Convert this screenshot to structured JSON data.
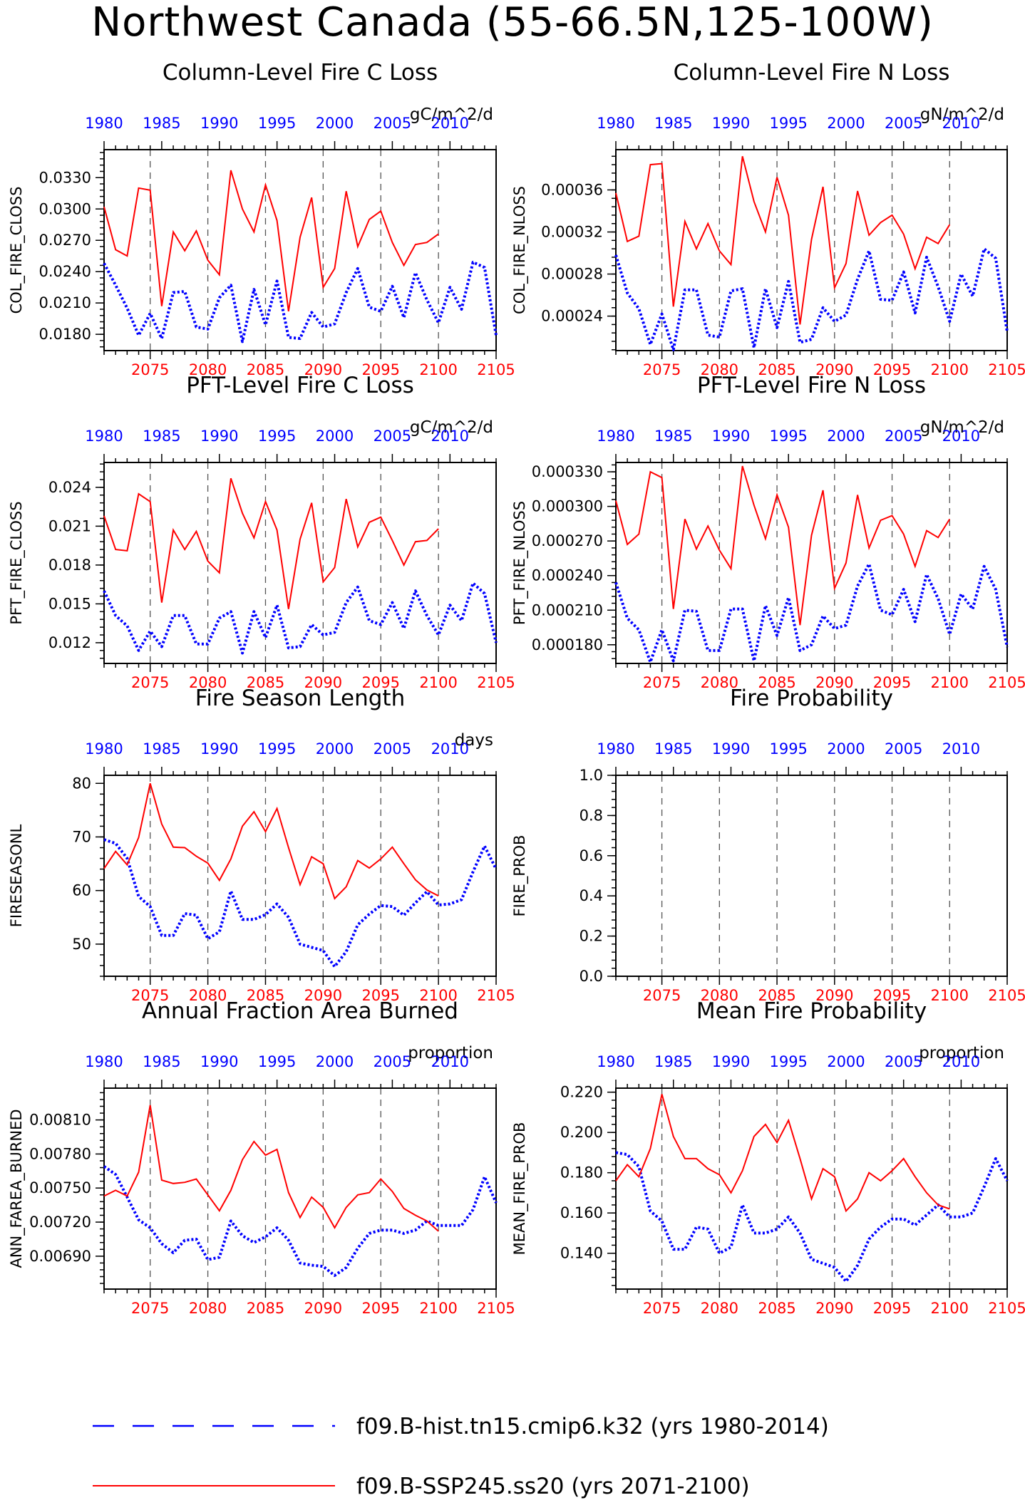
{
  "title": "Northwest Canada (55-66.5N,125-100W)",
  "colors": {
    "hist": "#0000ff",
    "ssp": "#ff0000",
    "axis": "#000000",
    "grid": "#555555"
  },
  "legend": [
    {
      "key": "hist",
      "label": "f09.B-hist.tn15.cmip6.k32 (yrs 1980-2014)",
      "style": "dashed-blue"
    },
    {
      "key": "ssp",
      "label": "f09.B-SSP245.ss20 (yrs 2071-2100)",
      "style": "solid-red"
    }
  ],
  "chart_data": [
    {
      "type": "line",
      "title": "Column-Level Fire C Loss",
      "units": "gC/m^2/d",
      "ylabel": "COL_FIRE_CLOSS",
      "ylim": [
        0.01644,
        0.03568
      ],
      "yticks": [
        "0.0180",
        "0.0210",
        "0.0240",
        "0.0270",
        "0.0300",
        "0.0330"
      ],
      "x_bottom": {
        "label": "",
        "range": [
          2071,
          2105
        ],
        "ticks": [
          2075,
          2080,
          2085,
          2090,
          2095,
          2100,
          2105
        ]
      },
      "x_top": {
        "label": "",
        "range": [
          1980,
          2014
        ],
        "ticks": [
          1980,
          1985,
          1990,
          1995,
          2000,
          2005,
          2010
        ]
      },
      "series": [
        {
          "key": "hist",
          "name": "f09.B-hist.tn15.cmip6.k32 (yrs 1980-2014)",
          "x_start": 1980,
          "values": [
            0.0248,
            0.0227,
            0.0205,
            0.0179,
            0.02,
            0.0176,
            0.022,
            0.0221,
            0.0187,
            0.0185,
            0.0215,
            0.0227,
            0.0173,
            0.0223,
            0.0189,
            0.0231,
            0.0177,
            0.0176,
            0.0201,
            0.0187,
            0.019,
            0.022,
            0.0243,
            0.0206,
            0.0202,
            0.0226,
            0.0196,
            0.0239,
            0.0213,
            0.0191,
            0.0225,
            0.0204,
            0.0249,
            0.0244,
            0.0179
          ]
        },
        {
          "key": "ssp",
          "name": "f09.B-SSP245.ss20 (yrs 2071-2100)",
          "x_start": 2071,
          "values": [
            0.0302,
            0.0261,
            0.0255,
            0.032,
            0.0318,
            0.0207,
            0.0278,
            0.026,
            0.0279,
            0.0251,
            0.0237,
            0.0337,
            0.03,
            0.0278,
            0.0323,
            0.0289,
            0.0202,
            0.0273,
            0.0311,
            0.0225,
            0.0243,
            0.0317,
            0.0264,
            0.029,
            0.0298,
            0.0268,
            0.0246,
            0.0266,
            0.0268,
            0.0276
          ]
        }
      ]
    },
    {
      "type": "line",
      "title": "Column-Level Fire N Loss",
      "units": "gN/m^2/d",
      "ylabel": "COL_FIRE_NLOSS",
      "ylim": [
        0.0002072,
        0.0003983
      ],
      "yticks": [
        "0.00024",
        "0.00028",
        "0.00032",
        "0.00036"
      ],
      "x_bottom": {
        "label": "",
        "range": [
          2071,
          2105
        ],
        "ticks": [
          2075,
          2080,
          2085,
          2090,
          2095,
          2100,
          2105
        ]
      },
      "x_top": {
        "label": "",
        "range": [
          1980,
          2014
        ],
        "ticks": [
          1980,
          1985,
          1990,
          1995,
          2000,
          2005,
          2010
        ]
      },
      "series": [
        {
          "key": "hist",
          "name": "f09.B-hist.tn15.cmip6.k32 (yrs 1980-2014)",
          "x_start": 1980,
          "values": [
            0.000298,
            0.000262,
            0.000247,
            0.000213,
            0.000242,
            0.000208,
            0.000265,
            0.000265,
            0.000222,
            0.00022,
            0.000264,
            0.000266,
            0.00021,
            0.000266,
            0.000229,
            0.000273,
            0.000215,
            0.000218,
            0.000248,
            0.000235,
            0.000241,
            0.000275,
            0.000302,
            0.000256,
            0.000255,
            0.000282,
            0.000243,
            0.000296,
            0.000268,
            0.000235,
            0.00028,
            0.000259,
            0.000304,
            0.000295,
            0.000225
          ]
        },
        {
          "key": "ssp",
          "name": "f09.B-SSP245.ss20 (yrs 2071-2100)",
          "x_start": 2071,
          "values": [
            0.000357,
            0.000311,
            0.000316,
            0.000384,
            0.000385,
            0.000249,
            0.00033,
            0.000304,
            0.000328,
            0.000302,
            0.000289,
            0.000392,
            0.000349,
            0.00032,
            0.000372,
            0.000336,
            0.000232,
            0.000313,
            0.000363,
            0.000267,
            0.00029,
            0.000359,
            0.000317,
            0.000329,
            0.000336,
            0.000318,
            0.000285,
            0.000315,
            0.000309,
            0.000327
          ]
        }
      ]
    },
    {
      "type": "line",
      "title": "PFT-Level Fire C Loss",
      "units": "gC/m^2/d",
      "ylabel": "PFT_FIRE_CLOSS",
      "ylim": [
        0.0104,
        0.02592
      ],
      "yticks": [
        "0.012",
        "0.015",
        "0.018",
        "0.021",
        "0.024"
      ],
      "x_bottom": {
        "label": "",
        "range": [
          2071,
          2105
        ],
        "ticks": [
          2075,
          2080,
          2085,
          2090,
          2095,
          2100,
          2105
        ]
      },
      "x_top": {
        "label": "",
        "range": [
          1980,
          2014
        ],
        "ticks": [
          1980,
          1985,
          1990,
          1995,
          2000,
          2005,
          2010
        ]
      },
      "series": [
        {
          "key": "hist",
          "name": "f09.B-hist.tn15.cmip6.k32 (yrs 1980-2014)",
          "x_start": 1980,
          "values": [
            0.016,
            0.0141,
            0.0133,
            0.0114,
            0.0129,
            0.0117,
            0.0141,
            0.0141,
            0.0119,
            0.0119,
            0.0139,
            0.0144,
            0.0112,
            0.0144,
            0.0124,
            0.0149,
            0.0116,
            0.0117,
            0.0134,
            0.0126,
            0.0128,
            0.0151,
            0.0163,
            0.0137,
            0.0134,
            0.0151,
            0.0131,
            0.016,
            0.0141,
            0.0126,
            0.0149,
            0.0137,
            0.0166,
            0.0158,
            0.012
          ]
        },
        {
          "key": "ssp",
          "name": "f09.B-SSP245.ss20 (yrs 2071-2100)",
          "x_start": 2071,
          "values": [
            0.0218,
            0.0192,
            0.0191,
            0.0235,
            0.0229,
            0.0151,
            0.0207,
            0.0192,
            0.0206,
            0.0183,
            0.0174,
            0.0247,
            0.022,
            0.0201,
            0.0229,
            0.0207,
            0.0146,
            0.02,
            0.0228,
            0.0167,
            0.0178,
            0.0231,
            0.0194,
            0.0213,
            0.0217,
            0.0199,
            0.018,
            0.0198,
            0.0199,
            0.0208
          ]
        }
      ]
    },
    {
      "type": "line",
      "title": "PFT-Level Fire N Loss",
      "units": "gN/m^2/d",
      "ylabel": "PFT_FIRE_NLOSS",
      "ylim": [
        0.0001638,
        0.0003381
      ],
      "yticks": [
        "0.000180",
        "0.000210",
        "0.000240",
        "0.000270",
        "0.000300",
        "0.000330"
      ],
      "x_bottom": {
        "label": "",
        "range": [
          2071,
          2105
        ],
        "ticks": [
          2075,
          2080,
          2085,
          2090,
          2095,
          2100,
          2105
        ]
      },
      "x_top": {
        "label": "",
        "range": [
          1980,
          2014
        ],
        "ticks": [
          1980,
          1985,
          1990,
          1995,
          2000,
          2005,
          2010
        ]
      },
      "series": [
        {
          "key": "hist",
          "name": "f09.B-hist.tn15.cmip6.k32 (yrs 1980-2014)",
          "x_start": 1980,
          "values": [
            0.000234,
            0.000203,
            0.000193,
            0.000165,
            0.000193,
            0.000166,
            0.00021,
            0.000209,
            0.000175,
            0.000175,
            0.000211,
            0.000211,
            0.000166,
            0.000214,
            0.000188,
            0.000221,
            0.000175,
            0.00018,
            0.000205,
            0.000194,
            0.000197,
            0.000231,
            0.00025,
            0.00021,
            0.000206,
            0.000228,
            0.0002,
            0.000241,
            0.00022,
            0.000189,
            0.000224,
            0.000211,
            0.000248,
            0.000228,
            0.000178
          ]
        },
        {
          "key": "ssp",
          "name": "f09.B-SSP245.ss20 (yrs 2071-2100)",
          "x_start": 2071,
          "values": [
            0.000305,
            0.000267,
            0.000276,
            0.00033,
            0.000325,
            0.000211,
            0.000289,
            0.000263,
            0.000283,
            0.000262,
            0.000246,
            0.000335,
            0.000301,
            0.000272,
            0.00031,
            0.000282,
            0.000197,
            0.000275,
            0.000314,
            0.000229,
            0.000251,
            0.00031,
            0.000264,
            0.000288,
            0.000292,
            0.000276,
            0.000248,
            0.000279,
            0.000273,
            0.000289
          ]
        }
      ]
    },
    {
      "type": "line",
      "title": "Fire Season Length",
      "units": "days",
      "ylabel": "FIRESEASONL",
      "ylim": [
        44,
        81.5
      ],
      "yticks": [
        "50",
        "60",
        "70",
        "80"
      ],
      "x_bottom": {
        "label": "",
        "range": [
          2071,
          2105
        ],
        "ticks": [
          2075,
          2080,
          2085,
          2090,
          2095,
          2100,
          2105
        ]
      },
      "x_top": {
        "label": "",
        "range": [
          1980,
          2014
        ],
        "ticks": [
          1980,
          1985,
          1990,
          1995,
          2000,
          2005,
          2010
        ]
      },
      "series": [
        {
          "key": "hist",
          "name": "f09.B-hist.tn15.cmip6.k32 (yrs 1980-2014)",
          "x_start": 1980,
          "values": [
            69.5,
            68.8,
            66.0,
            58.9,
            57.0,
            51.6,
            51.6,
            55.7,
            55.4,
            51.0,
            52.3,
            59.9,
            54.6,
            54.6,
            55.5,
            57.5,
            55.0,
            50.0,
            49.4,
            48.8,
            45.8,
            48.6,
            53.6,
            55.6,
            57.2,
            57.0,
            55.4,
            57.7,
            59.8,
            57.3,
            57.5,
            58.3,
            63.5,
            68.3,
            64.0
          ]
        },
        {
          "key": "ssp",
          "name": "f09.B-SSP245.ss20 (yrs 2071-2100)",
          "x_start": 2071,
          "values": [
            64.1,
            67.3,
            64.8,
            69.9,
            80.0,
            72.4,
            68.1,
            68.0,
            66.4,
            65.1,
            61.9,
            65.9,
            72.0,
            74.7,
            71.0,
            75.3,
            68.0,
            61.1,
            66.3,
            65.0,
            58.5,
            60.7,
            65.6,
            64.2,
            65.9,
            68.1,
            65.0,
            62.0,
            60.1,
            59.0
          ]
        }
      ]
    },
    {
      "type": "line",
      "title": "Fire Probability",
      "units": "",
      "ylabel": "FIRE_PROB",
      "ylim": [
        0,
        1
      ],
      "yticks": [
        "0.0",
        "0.2",
        "0.4",
        "0.6",
        "0.8",
        "1.0"
      ],
      "x_bottom": {
        "label": "",
        "range": [
          2071,
          2105
        ],
        "ticks": [
          2075,
          2080,
          2085,
          2090,
          2095,
          2100,
          2105
        ]
      },
      "x_top": {
        "label": "",
        "range": [
          1980,
          2014
        ],
        "ticks": [
          1980,
          1985,
          1990,
          1995,
          2000,
          2005,
          2010
        ]
      },
      "series": []
    },
    {
      "type": "line",
      "title": "Annual Fraction Area Burned",
      "units": "proportion",
      "ylabel": "ANN_FAREA_BURNED",
      "ylim": [
        0.00661,
        0.00838
      ],
      "yticks": [
        "0.00690",
        "0.00720",
        "0.00750",
        "0.00780",
        "0.00810"
      ],
      "x_bottom": {
        "label": "",
        "range": [
          2071,
          2105
        ],
        "ticks": [
          2075,
          2080,
          2085,
          2090,
          2095,
          2100,
          2105
        ]
      },
      "x_top": {
        "label": "",
        "range": [
          1980,
          2014
        ],
        "ticks": [
          1980,
          1985,
          1990,
          1995,
          2000,
          2005,
          2010
        ]
      },
      "series": [
        {
          "key": "hist",
          "name": "f09.B-hist.tn15.cmip6.k32 (yrs 1980-2014)",
          "x_start": 1980,
          "values": [
            0.00769,
            0.00762,
            0.00742,
            0.00722,
            0.00715,
            0.00701,
            0.00693,
            0.00704,
            0.00705,
            0.00687,
            0.00689,
            0.00721,
            0.00708,
            0.00702,
            0.00707,
            0.00715,
            0.00704,
            0.00684,
            0.00682,
            0.00681,
            0.00673,
            0.0068,
            0.00697,
            0.0071,
            0.00713,
            0.00713,
            0.0071,
            0.00713,
            0.00721,
            0.00717,
            0.00717,
            0.00717,
            0.00731,
            0.0076,
            0.00737
          ]
        },
        {
          "key": "ssp",
          "name": "f09.B-SSP245.ss20 (yrs 2071-2100)",
          "x_start": 2071,
          "values": [
            0.00743,
            0.00748,
            0.00743,
            0.00764,
            0.00823,
            0.00757,
            0.00754,
            0.00755,
            0.00758,
            0.00744,
            0.0073,
            0.00748,
            0.00775,
            0.00791,
            0.00779,
            0.00784,
            0.00746,
            0.00724,
            0.00742,
            0.00733,
            0.00715,
            0.00733,
            0.00744,
            0.00746,
            0.00758,
            0.00747,
            0.00732,
            0.00726,
            0.00721,
            0.00712
          ]
        }
      ]
    },
    {
      "type": "line",
      "title": "Mean Fire Probability",
      "units": "proportion",
      "ylabel": "MEAN_FIRE_PROB",
      "ylim": [
        0.1222,
        0.222
      ],
      "yticks": [
        "0.140",
        "0.160",
        "0.180",
        "0.200",
        "0.220"
      ],
      "x_bottom": {
        "label": "",
        "range": [
          2071,
          2105
        ],
        "ticks": [
          2075,
          2080,
          2085,
          2090,
          2095,
          2100,
          2105
        ]
      },
      "x_top": {
        "label": "",
        "range": [
          1980,
          2014
        ],
        "ticks": [
          1980,
          1985,
          1990,
          1995,
          2000,
          2005,
          2010
        ]
      },
      "series": [
        {
          "key": "hist",
          "name": "f09.B-hist.tn15.cmip6.k32 (yrs 1980-2014)",
          "x_start": 1980,
          "values": [
            0.19,
            0.189,
            0.183,
            0.161,
            0.156,
            0.142,
            0.142,
            0.153,
            0.152,
            0.14,
            0.143,
            0.164,
            0.15,
            0.15,
            0.152,
            0.158,
            0.15,
            0.137,
            0.135,
            0.133,
            0.126,
            0.134,
            0.147,
            0.153,
            0.157,
            0.157,
            0.154,
            0.159,
            0.164,
            0.158,
            0.158,
            0.16,
            0.173,
            0.187,
            0.176
          ]
        },
        {
          "key": "ssp",
          "name": "f09.B-SSP245.ss20 (yrs 2071-2100)",
          "x_start": 2071,
          "values": [
            0.176,
            0.184,
            0.178,
            0.192,
            0.219,
            0.198,
            0.187,
            0.187,
            0.182,
            0.179,
            0.17,
            0.181,
            0.198,
            0.204,
            0.195,
            0.206,
            0.187,
            0.167,
            0.182,
            0.178,
            0.161,
            0.167,
            0.18,
            0.176,
            0.181,
            0.187,
            0.178,
            0.17,
            0.164,
            0.162
          ]
        }
      ]
    }
  ]
}
